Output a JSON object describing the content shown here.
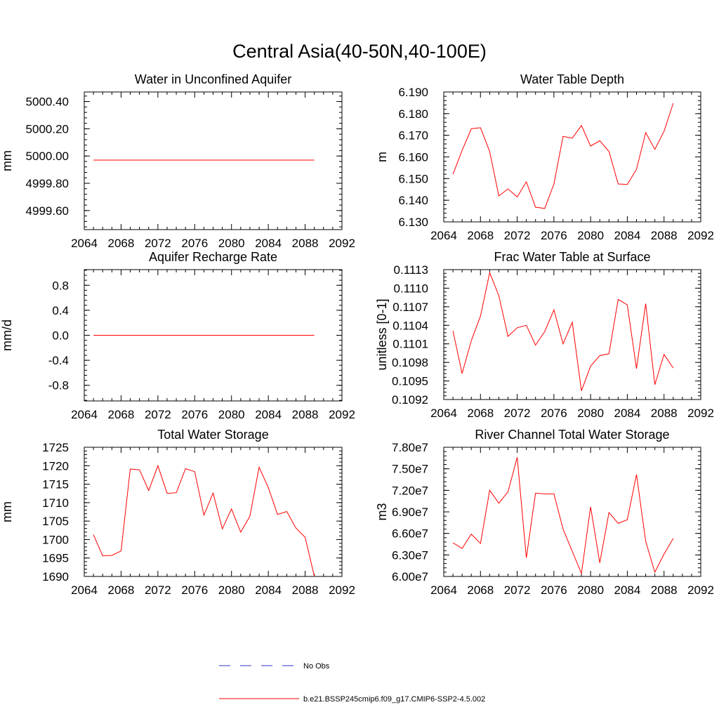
{
  "title": "Central Asia(40-50N,40-100E)",
  "colors": {
    "model": "#ff0000",
    "obs": "#3333cc",
    "axis": "#000000"
  },
  "legend": {
    "obs_label": "No Obs",
    "model_label": "b.e21.BSSP245cmip6.f09_g17.CMIP6-SSP2-4.5.002"
  },
  "chart_data": [
    {
      "type": "line",
      "title": "Water in Unconfined Aquifer",
      "xlabel": "",
      "ylabel": "mm",
      "xlim": [
        2064,
        2092
      ],
      "ylim": [
        4999.46,
        5000.47
      ],
      "xticks": [
        2064,
        2068,
        2072,
        2076,
        2080,
        2084,
        2088,
        2092
      ],
      "yticks": [
        4999.6,
        4999.8,
        5000.0,
        5000.2,
        5000.4
      ],
      "ydec": 2,
      "x": [
        2065,
        2066,
        2067,
        2068,
        2069,
        2070,
        2071,
        2072,
        2073,
        2074,
        2075,
        2076,
        2077,
        2078,
        2079,
        2080,
        2081,
        2082,
        2083,
        2084,
        2085,
        2086,
        2087,
        2088,
        2089
      ],
      "series": [
        {
          "values": [
            4999.97,
            4999.97,
            4999.97,
            4999.97,
            4999.97,
            4999.97,
            4999.97,
            4999.97,
            4999.97,
            4999.97,
            4999.97,
            4999.97,
            4999.97,
            4999.97,
            4999.97,
            4999.97,
            4999.97,
            4999.97,
            4999.97,
            4999.97,
            4999.97,
            4999.97,
            4999.97,
            4999.97,
            4999.97
          ]
        }
      ]
    },
    {
      "type": "line",
      "title": "Water Table Depth",
      "xlabel": "",
      "ylabel": "m",
      "xlim": [
        2064,
        2092
      ],
      "ylim": [
        6.13,
        6.19
      ],
      "xticks": [
        2064,
        2068,
        2072,
        2076,
        2080,
        2084,
        2088,
        2092
      ],
      "yticks": [
        6.13,
        6.14,
        6.15,
        6.16,
        6.17,
        6.18,
        6.19
      ],
      "ydec": 3,
      "x": [
        2065,
        2066,
        2067,
        2068,
        2069,
        2070,
        2071,
        2072,
        2073,
        2074,
        2075,
        2076,
        2077,
        2078,
        2079,
        2080,
        2081,
        2082,
        2083,
        2084,
        2085,
        2086,
        2087,
        2088,
        2089
      ],
      "series": [
        {
          "values": [
            6.152,
            6.163,
            6.173,
            6.1735,
            6.1625,
            6.142,
            6.1452,
            6.1415,
            6.1485,
            6.1368,
            6.1362,
            6.1475,
            6.1695,
            6.1687,
            6.1745,
            6.165,
            6.1675,
            6.1625,
            6.1475,
            6.1473,
            6.1543,
            6.1713,
            6.1635,
            6.1718,
            6.1848
          ]
        }
      ]
    },
    {
      "type": "line",
      "title": "Aquifer Recharge Rate",
      "xlabel": "",
      "ylabel": "mm/d",
      "xlim": [
        2064,
        2092
      ],
      "ylim": [
        -1.05,
        1.05
      ],
      "xticks": [
        2064,
        2068,
        2072,
        2076,
        2080,
        2084,
        2088,
        2092
      ],
      "yticks": [
        -0.8,
        -0.4,
        0.0,
        0.4,
        0.8
      ],
      "ydec": 1,
      "x": [
        2065,
        2066,
        2067,
        2068,
        2069,
        2070,
        2071,
        2072,
        2073,
        2074,
        2075,
        2076,
        2077,
        2078,
        2079,
        2080,
        2081,
        2082,
        2083,
        2084,
        2085,
        2086,
        2087,
        2088,
        2089
      ],
      "series": [
        {
          "values": [
            0,
            0,
            0,
            0,
            0,
            0,
            0,
            0,
            0,
            0,
            0,
            0,
            0,
            0,
            0,
            0,
            0,
            0,
            0,
            0,
            0,
            0,
            0,
            0,
            0
          ]
        }
      ]
    },
    {
      "type": "line",
      "title": "Frac Water Table at Surface",
      "xlabel": "",
      "ylabel": "unitless [0-1]",
      "xlim": [
        2064,
        2092
      ],
      "ylim": [
        0.1092,
        0.1113
      ],
      "xticks": [
        2064,
        2068,
        2072,
        2076,
        2080,
        2084,
        2088,
        2092
      ],
      "yticks": [
        0.1092,
        0.1095,
        0.1098,
        0.1101,
        0.1104,
        0.1107,
        0.111,
        0.1113
      ],
      "ydec": 4,
      "x": [
        2065,
        2066,
        2067,
        2068,
        2069,
        2070,
        2071,
        2072,
        2073,
        2074,
        2075,
        2076,
        2077,
        2078,
        2079,
        2080,
        2081,
        2082,
        2083,
        2084,
        2085,
        2086,
        2087,
        2088,
        2089
      ],
      "series": [
        {
          "values": [
            0.11031,
            0.10962,
            0.11015,
            0.11055,
            0.11125,
            0.11088,
            0.11022,
            0.11036,
            0.1104,
            0.11008,
            0.1103,
            0.11065,
            0.1101,
            0.11045,
            0.10934,
            0.10974,
            0.10991,
            0.10994,
            0.11082,
            0.11073,
            0.1097,
            0.11075,
            0.10944,
            0.10993,
            0.10971
          ]
        }
      ]
    },
    {
      "type": "line",
      "title": "Total Water Storage",
      "xlabel": "",
      "ylabel": "mm",
      "xlim": [
        2064,
        2092
      ],
      "ylim": [
        1690,
        1725
      ],
      "xticks": [
        2064,
        2068,
        2072,
        2076,
        2080,
        2084,
        2088,
        2092
      ],
      "yticks": [
        1690,
        1695,
        1700,
        1705,
        1710,
        1715,
        1720,
        1725
      ],
      "ydec": 0,
      "x": [
        2065,
        2066,
        2067,
        2068,
        2069,
        2070,
        2071,
        2072,
        2073,
        2074,
        2075,
        2076,
        2077,
        2078,
        2079,
        2080,
        2081,
        2082,
        2083,
        2084,
        2085,
        2086,
        2087,
        2088,
        2089
      ],
      "series": [
        {
          "values": [
            1701.3,
            1695.6,
            1695.7,
            1696.9,
            1719.1,
            1718.9,
            1713.3,
            1720.0,
            1712.5,
            1712.7,
            1719.2,
            1718.4,
            1706.6,
            1712.6,
            1702.9,
            1708.3,
            1702.0,
            1706.3,
            1719.6,
            1714.1,
            1706.8,
            1707.6,
            1703.1,
            1700.6,
            1690.0
          ]
        }
      ]
    },
    {
      "type": "line",
      "title": "River Channel Total Water Storage",
      "xlabel": "",
      "ylabel": "m3",
      "xlim": [
        2064,
        2092
      ],
      "ylim": [
        60000000.0,
        78000000.0
      ],
      "xticks": [
        2064,
        2068,
        2072,
        2076,
        2080,
        2084,
        2088,
        2092
      ],
      "yticks": [
        60000000.0,
        63000000.0,
        66000000.0,
        69000000.0,
        72000000.0,
        75000000.0,
        78000000.0
      ],
      "ydec": 0,
      "yexp": true,
      "x": [
        2065,
        2066,
        2067,
        2068,
        2069,
        2070,
        2071,
        2072,
        2073,
        2074,
        2075,
        2076,
        2077,
        2078,
        2079,
        2080,
        2081,
        2082,
        2083,
        2084,
        2085,
        2086,
        2087,
        2088,
        2089
      ],
      "series": [
        {
          "values": [
            64700000.0,
            63900000.0,
            65900000.0,
            64600000.0,
            72000000.0,
            70200000.0,
            71800000.0,
            76600000.0,
            62600000.0,
            71600000.0,
            71500000.0,
            71500000.0,
            66600000.0,
            63500000.0,
            60400000.0,
            69700000.0,
            61900000.0,
            68900000.0,
            67400000.0,
            67900000.0,
            74200000.0,
            64900000.0,
            60600000.0,
            63100000.0,
            65300000.0
          ]
        }
      ]
    }
  ]
}
